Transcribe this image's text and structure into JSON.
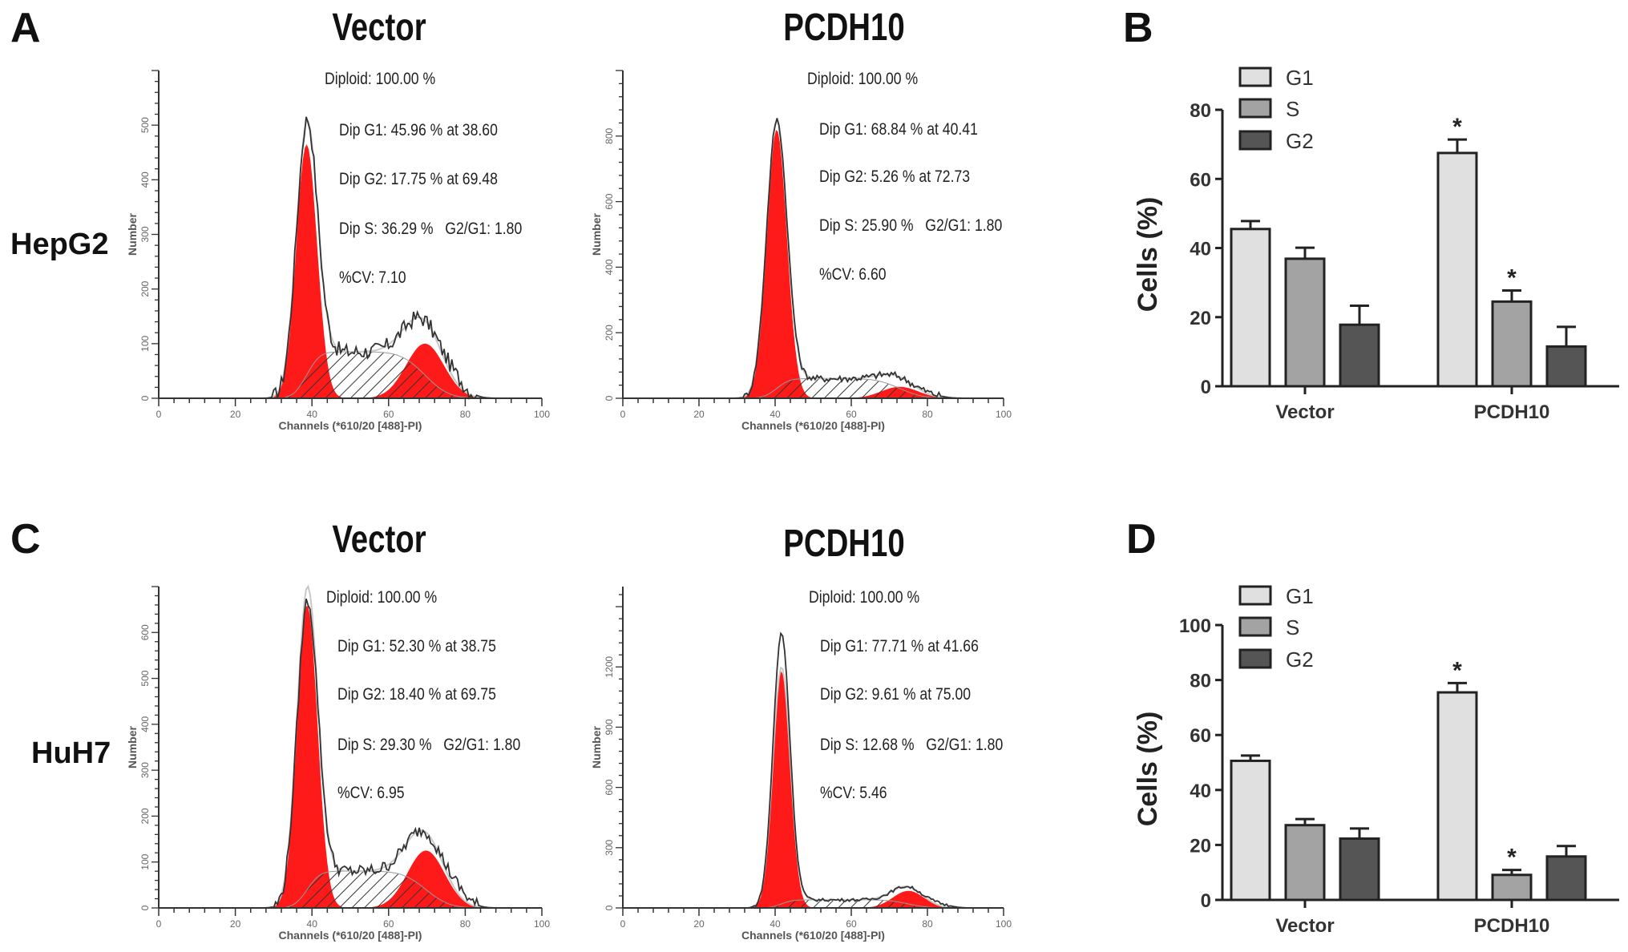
{
  "figure": {
    "panel_labels": {
      "a": "A",
      "b": "B",
      "c": "C",
      "d": "D"
    },
    "row_labels": {
      "hepg2": "HepG2",
      "huh7": "HuH7"
    }
  },
  "chart_data": [
    {
      "type": "area",
      "id": "hepg2_vector",
      "title": "Vector",
      "row": "HepG2",
      "xlabel": "Channels (*610/20 [488]-PI)",
      "ylabel": "Number",
      "xlim": [
        0,
        100
      ],
      "ylim": [
        0,
        600
      ],
      "xticks": [
        "0",
        "20",
        "40",
        "60",
        "80",
        "100"
      ],
      "yticks": [
        "0",
        "100",
        "200",
        "300",
        "400",
        "500"
      ],
      "ytick_step": 100,
      "stats": [
        "Diploid: 100.00 %",
        "Dip G1: 45.96 % at 38.60",
        "Dip G2: 17.75 % at 69.48",
        "Dip S: 36.29 %   G2/G1: 1.80",
        "%CV: 7.10"
      ],
      "model": {
        "g1_mean": 38.6,
        "g2_mean": 69.48,
        "cv": 7.1,
        "g1_peak": 465,
        "g2_peak": 100,
        "s_level": 85,
        "observed_peak": 510
      }
    },
    {
      "type": "area",
      "id": "hepg2_pcdh10",
      "title": "PCDH10",
      "row": "HepG2",
      "xlabel": "Channels (*610/20 [488]-PI)",
      "ylabel": "Number",
      "xlim": [
        0,
        100
      ],
      "ylim": [
        0,
        1000
      ],
      "xticks": [
        "0",
        "20",
        "40",
        "60",
        "80",
        "100"
      ],
      "yticks": [
        "0",
        "200",
        "400",
        "600",
        "800"
      ],
      "ytick_step": 200,
      "stats": [
        "Diploid: 100.00 %",
        "Dip G1: 68.84 % at 40.41",
        "Dip G2: 5.26 % at 72.73",
        "Dip S: 25.90 %   G2/G1: 1.80",
        "%CV: 6.60"
      ],
      "model": {
        "g1_mean": 40.41,
        "g2_mean": 72.73,
        "cv": 6.6,
        "g1_peak": 820,
        "g2_peak": 35,
        "s_level": 60,
        "observed_peak": 850
      }
    },
    {
      "type": "area",
      "id": "huh7_vector",
      "title": "Vector",
      "row": "HuH7",
      "xlabel": "Channels (*610/20 [488]-PI)",
      "ylabel": "Number",
      "xlim": [
        0,
        100
      ],
      "ylim": [
        0,
        700
      ],
      "xticks": [
        "0",
        "20",
        "40",
        "60",
        "80",
        "100"
      ],
      "yticks": [
        "0",
        "100",
        "200",
        "300",
        "400",
        "500",
        "600"
      ],
      "ytick_step": 100,
      "stats": [
        "Diploid: 100.00 %",
        "Dip G1: 52.30 % at 38.75",
        "Dip G2: 18.40 % at 69.75",
        "Dip S: 29.30 %   G2/G1: 1.80",
        "%CV: 6.95"
      ],
      "model": {
        "g1_mean": 38.75,
        "g2_mean": 69.75,
        "cv": 6.95,
        "g1_peak": 660,
        "g2_peak": 125,
        "s_level": 80,
        "observed_peak": 670
      }
    },
    {
      "type": "area",
      "id": "huh7_pcdh10",
      "title": "PCDH10",
      "row": "HuH7",
      "xlabel": "Channels (*610/20 [488]-PI)",
      "ylabel": "Number",
      "xlim": [
        0,
        100
      ],
      "ylim": [
        0,
        1600
      ],
      "xticks": [
        "0",
        "20",
        "40",
        "60",
        "80",
        "100"
      ],
      "yticks": [
        "0",
        "300",
        "600",
        "900",
        "1200"
      ],
      "ytick_step": 300,
      "stats": [
        "Diploid: 100.00 %",
        "Dip G1: 77.71 % at 41.66",
        "Dip G2: 9.61 % at 75.00",
        "Dip S: 12.68 %   G2/G1: 1.80",
        "%CV: 5.46"
      ],
      "model": {
        "g1_mean": 41.66,
        "g2_mean": 75.0,
        "cv": 5.46,
        "g1_peak": 1180,
        "g2_peak": 85,
        "s_level": 40,
        "observed_peak": 1370
      }
    },
    {
      "type": "bar",
      "id": "hepg2_cell_cycle",
      "panel": "B",
      "ylabel": "Cells (%)",
      "ylim": [
        0,
        80
      ],
      "yticks": [
        "0",
        "20",
        "40",
        "60",
        "80"
      ],
      "ytick_step": 20,
      "categories": [
        "Vector",
        "PCDH10"
      ],
      "legend": "top-left",
      "series": [
        {
          "name": "G1",
          "color": "#e0e0e0",
          "values": [
            45.5,
            67.5
          ],
          "errors": [
            2.3,
            3.9
          ],
          "significance": [
            "",
            "*"
          ]
        },
        {
          "name": "S",
          "color": "#a3a3a3",
          "values": [
            36.9,
            24.5
          ],
          "errors": [
            3.2,
            3.2
          ],
          "significance": [
            "",
            "*"
          ]
        },
        {
          "name": "G2",
          "color": "#555555",
          "values": [
            17.8,
            11.5
          ],
          "errors": [
            5.5,
            5.7
          ],
          "significance": [
            "",
            ""
          ]
        }
      ]
    },
    {
      "type": "bar",
      "id": "huh7_cell_cycle",
      "panel": "D",
      "ylabel": "Cells (%)",
      "ylim": [
        0,
        100
      ],
      "yticks": [
        "0",
        "20",
        "40",
        "60",
        "80",
        "100"
      ],
      "ytick_step": 20,
      "categories": [
        "Vector",
        "PCDH10"
      ],
      "legend": "top-left",
      "series": [
        {
          "name": "G1",
          "color": "#e0e0e0",
          "values": [
            50.6,
            75.5
          ],
          "errors": [
            1.9,
            3.4
          ],
          "significance": [
            "",
            "*"
          ]
        },
        {
          "name": "S",
          "color": "#a3a3a3",
          "values": [
            27.2,
            9.1
          ],
          "errors": [
            2.2,
            1.8
          ],
          "significance": [
            "",
            "*"
          ]
        },
        {
          "name": "G2",
          "color": "#555555",
          "values": [
            22.3,
            15.8
          ],
          "errors": [
            3.7,
            3.8
          ],
          "significance": [
            "",
            ""
          ]
        }
      ]
    }
  ]
}
